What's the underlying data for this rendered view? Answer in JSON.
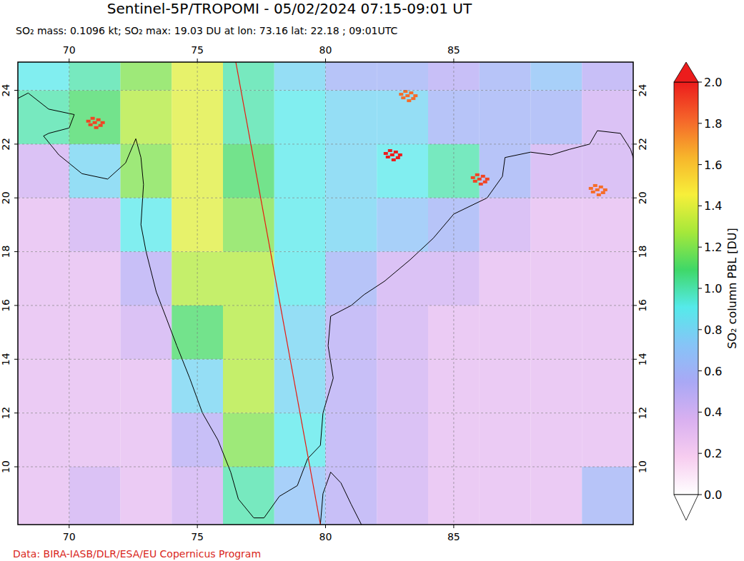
{
  "chart_data": {
    "type": "map",
    "title": "Sentinel-5P/TROPOMI - 05/02/2024 07:15-09:01 UT",
    "subtitle": "SO₂ mass: 0.1096 kt; SO₂ max: 19.03 DU at lon: 73.16 lat: 22.18 ; 09:01UTC",
    "credit": "Data: BIRA-IASB/DLR/ESA/EU Copernicus Program",
    "xlim": [
      68,
      92
    ],
    "ylim": [
      7.85,
      25.05
    ],
    "xticks": [
      70,
      75,
      80,
      85
    ],
    "yticks": [
      10,
      12,
      14,
      16,
      18,
      20,
      22,
      24
    ],
    "grid": true,
    "colorbar": {
      "label": "SO₂ column PBL [DU]",
      "range": [
        0,
        2
      ],
      "ticks": [
        {
          "value": 0,
          "label": "0.0"
        },
        0.2,
        0.4,
        0.6,
        0.8,
        {
          "value": 1,
          "label": "1.0"
        },
        1.2,
        1.4,
        1.6,
        1.8,
        {
          "value": 2,
          "label": "2.0"
        }
      ],
      "colors": [
        "#ffffff",
        "#f7cdf0",
        "#d9b0f0",
        "#a9a8f5",
        "#86c4f7",
        "#55eaea",
        "#3fd868",
        "#a6e83a",
        "#f7ef3a",
        "#f7b52b",
        "#f5652a",
        "#ec1c1c"
      ]
    },
    "cells": {
      "lon_edges": [
        68,
        70,
        72,
        74,
        76,
        78,
        80,
        82,
        84,
        86,
        88,
        90,
        92
      ],
      "lat_edges": [
        7.85,
        10,
        12,
        14,
        16,
        18,
        20,
        22,
        24,
        25.05
      ],
      "values": [
        [
          0.3,
          0.4,
          0.3,
          0.4,
          1.0,
          0.7,
          0.5,
          0.4,
          0.3,
          0.3,
          0.3,
          0.6
        ],
        [
          0.3,
          0.3,
          0.3,
          0.5,
          1.2,
          0.9,
          0.5,
          0.4,
          0.3,
          0.3,
          0.3,
          0.3
        ],
        [
          0.3,
          0.3,
          0.3,
          0.8,
          1.3,
          0.8,
          0.5,
          0.4,
          0.3,
          0.3,
          0.3,
          0.3
        ],
        [
          0.3,
          0.3,
          0.4,
          1.1,
          1.3,
          0.8,
          0.5,
          0.4,
          0.3,
          0.3,
          0.3,
          0.3
        ],
        [
          0.3,
          0.3,
          0.5,
          1.3,
          1.3,
          0.9,
          0.6,
          0.4,
          0.4,
          0.3,
          0.3,
          0.3
        ],
        [
          0.3,
          0.4,
          0.9,
          1.4,
          1.2,
          0.9,
          0.8,
          0.7,
          0.6,
          0.4,
          0.3,
          0.3
        ],
        [
          0.4,
          0.8,
          1.2,
          1.4,
          1.1,
          0.9,
          0.8,
          0.9,
          1.0,
          0.6,
          0.4,
          0.4
        ],
        [
          1.0,
          1.1,
          1.3,
          1.4,
          1.0,
          0.9,
          0.8,
          0.8,
          0.6,
          0.6,
          0.6,
          0.4
        ],
        [
          0.9,
          1.0,
          1.2,
          1.4,
          1.0,
          0.8,
          0.6,
          0.6,
          0.5,
          0.6,
          0.7,
          0.5
        ]
      ]
    },
    "hotspots": [
      {
        "lon": 83.2,
        "lat": 23.8,
        "value": 1.8
      },
      {
        "lon": 82.6,
        "lat": 21.6,
        "value": 2.0
      },
      {
        "lon": 86.0,
        "lat": 20.7,
        "value": 1.9
      },
      {
        "lon": 71.0,
        "lat": 22.8,
        "value": 1.9
      },
      {
        "lon": 90.6,
        "lat": 20.3,
        "value": 1.8
      }
    ],
    "swath_edge": {
      "lon": [
        76.5,
        79.8
      ],
      "lat": [
        25.05,
        7.85
      ],
      "color": "#e8190f"
    }
  }
}
